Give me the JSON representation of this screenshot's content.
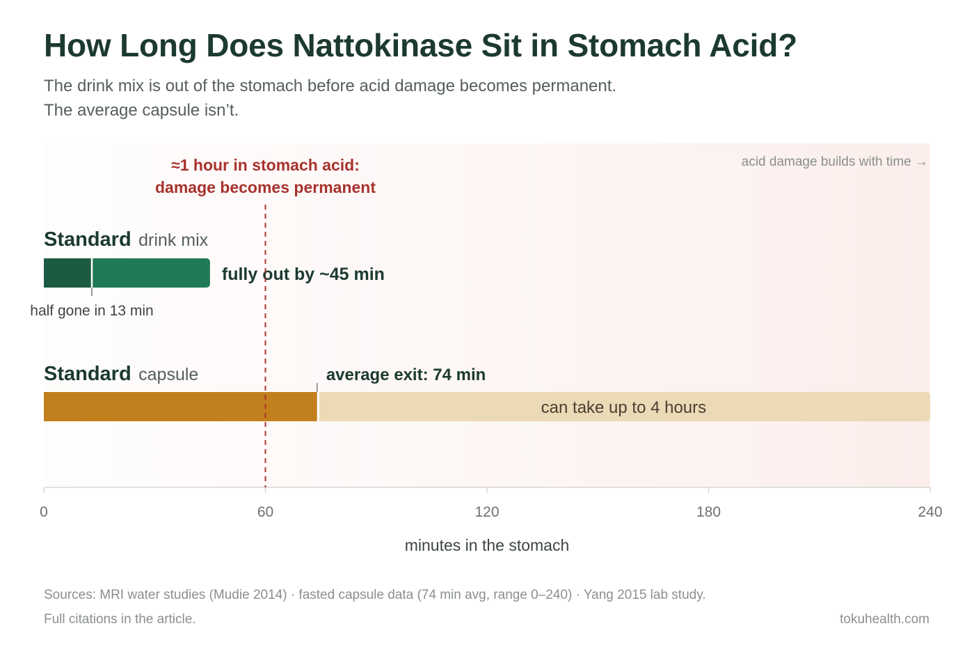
{
  "header": {
    "title": "How Long Does Nattokinase Sit in Stomach Acid?",
    "subtitle_line1": "The drink mix is out of the stomach before acid damage becomes permanent.",
    "subtitle_line2": "The average capsule isn’t."
  },
  "chart_data": {
    "type": "bar",
    "orientation": "horizontal",
    "xlabel": "minutes in the stomach",
    "xlim": [
      0,
      240
    ],
    "xticks": [
      "0",
      "60",
      "120",
      "180",
      "240"
    ],
    "grid": false,
    "background_note": "acid damage builds with time →",
    "threshold": {
      "value": 60,
      "label_line1": "≈1 hour in stomach acid:",
      "label_line2": "damage becomes permanent"
    },
    "series": [
      {
        "label_bold": "Standard",
        "label_rest": "drink mix",
        "half_value": 13,
        "value": 45,
        "half_label": "half gone in 13 min",
        "end_label": "fully out by ~45 min",
        "color_dark": "#1c5b42",
        "color_main": "#217a57"
      },
      {
        "label_bold": "Standard",
        "label_rest": "capsule",
        "value": 74,
        "range_max": 240,
        "value_label": "average exit: 74 min",
        "range_label": "can take up to 4 hours",
        "color_main": "#c27f1e",
        "color_range": "#ecd9b6"
      }
    ]
  },
  "colors": {
    "threshold": "#a8322d",
    "title": "#1c3a2e",
    "axis": "#d5d7d5",
    "tick_text": "#6b706d"
  },
  "footer": {
    "sources": "Sources: MRI water studies (Mudie 2014) · fasted capsule data (74 min avg, range 0–240) · Yang 2015 lab study.",
    "note": "Full citations in the article.",
    "brand": "tokuhealth.com"
  }
}
